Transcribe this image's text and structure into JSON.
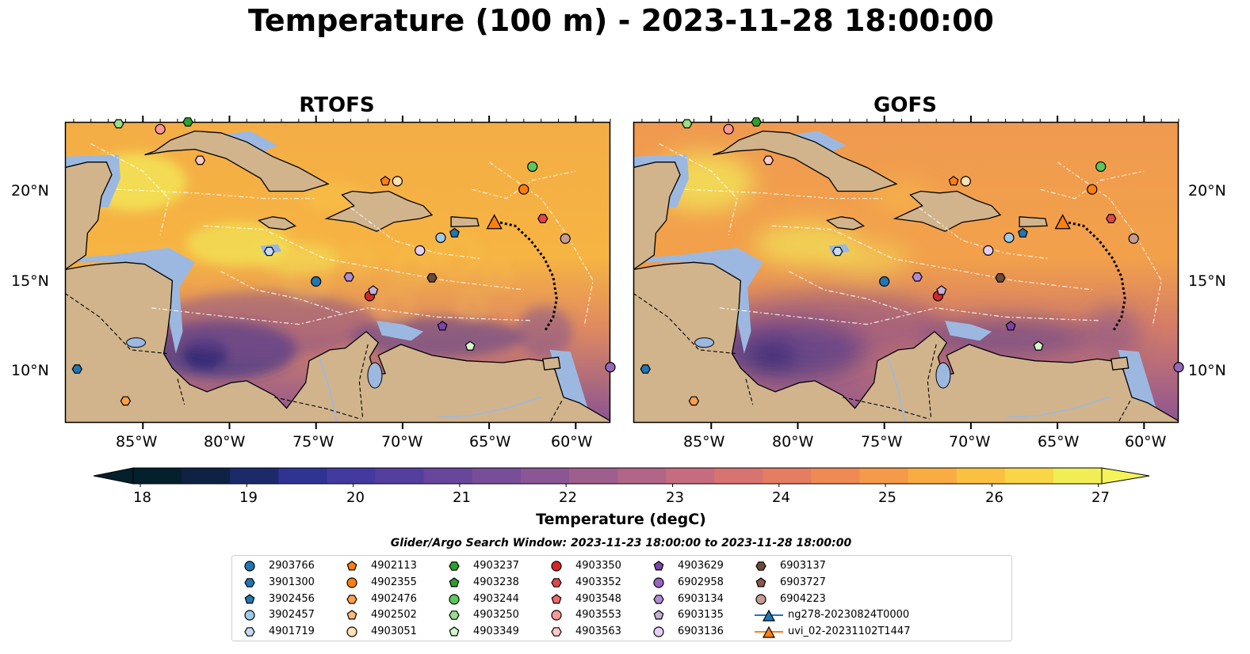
{
  "title": "Temperature (100 m) - 2023-11-28 18:00:00",
  "panels": [
    {
      "title": "RTOFS"
    },
    {
      "title": "GOFS"
    }
  ],
  "axes": {
    "lon_ticks": [
      "85°W",
      "80°W",
      "75°W",
      "70°W",
      "65°W",
      "60°W"
    ],
    "lat_ticks": [
      "20°N",
      "15°N",
      "10°N"
    ]
  },
  "map_extent": {
    "lon": [
      -89.5,
      -58.0
    ],
    "lat": [
      7.2,
      23.7
    ]
  },
  "colorbar": {
    "label": "Temperature (degC)",
    "ticks": [
      "18",
      "19",
      "20",
      "21",
      "22",
      "23",
      "24",
      "25",
      "26",
      "27"
    ],
    "range": [
      18,
      27
    ],
    "extend": "both",
    "colors": [
      "#04202c",
      "#0f2244",
      "#1c2a6a",
      "#2f3392",
      "#433aa0",
      "#553f9e",
      "#67469c",
      "#794e98",
      "#8b5694",
      "#9e5e8e",
      "#b16587",
      "#c56c7e",
      "#d77472",
      "#e57d63",
      "#ef8a54",
      "#f49a48",
      "#f8ac42",
      "#fac041",
      "#f8d645",
      "#f1ee55"
    ]
  },
  "search_window": "Glider/Argo Search Window: 2023-11-23 18:00:00 to 2023-11-28 18:00:00",
  "legend": [
    {
      "label": "2903766",
      "marker": "circle",
      "color": "#1f77b4"
    },
    {
      "label": "3901300",
      "marker": "hexagon",
      "color": "#1f77b4"
    },
    {
      "label": "3902456",
      "marker": "pentagon",
      "color": "#1f77b4"
    },
    {
      "label": "3902457",
      "marker": "circle",
      "color": "#9ecae9"
    },
    {
      "label": "4901719",
      "marker": "hexagon",
      "color": "#c6dbef"
    },
    {
      "label": "4902113",
      "marker": "pentagon",
      "color": "#ff7f0e"
    },
    {
      "label": "4902355",
      "marker": "circle",
      "color": "#ff7f0e"
    },
    {
      "label": "4902476",
      "marker": "hexagon",
      "color": "#ff9e4a"
    },
    {
      "label": "4902502",
      "marker": "pentagon",
      "color": "#ffbb78"
    },
    {
      "label": "4903051",
      "marker": "circle",
      "color": "#ffdfb3"
    },
    {
      "label": "4903237",
      "marker": "hexagon",
      "color": "#2ca02c"
    },
    {
      "label": "4903238",
      "marker": "pentagon",
      "color": "#2ca02c"
    },
    {
      "label": "4903244",
      "marker": "circle",
      "color": "#5cc85c"
    },
    {
      "label": "4903250",
      "marker": "hexagon",
      "color": "#98df8a"
    },
    {
      "label": "4903349",
      "marker": "pentagon",
      "color": "#d4f7cc"
    },
    {
      "label": "4903350",
      "marker": "circle",
      "color": "#d62728"
    },
    {
      "label": "4903352",
      "marker": "hexagon",
      "color": "#e0474a"
    },
    {
      "label": "4903548",
      "marker": "pentagon",
      "color": "#f0696a"
    },
    {
      "label": "4903553",
      "marker": "circle",
      "color": "#ff9896"
    },
    {
      "label": "4903563",
      "marker": "hexagon",
      "color": "#ffc9c7"
    },
    {
      "label": "4903629",
      "marker": "pentagon",
      "color": "#7b45a8"
    },
    {
      "label": "6902958",
      "marker": "circle",
      "color": "#9467bd"
    },
    {
      "label": "6903134",
      "marker": "hexagon",
      "color": "#b08ad6"
    },
    {
      "label": "6903135",
      "marker": "pentagon",
      "color": "#c5b0d5"
    },
    {
      "label": "6903136",
      "marker": "circle",
      "color": "#e6cff5"
    },
    {
      "label": "6903137",
      "marker": "hexagon",
      "color": "#6b4a3a"
    },
    {
      "label": "6903727",
      "marker": "pentagon",
      "color": "#8c564b"
    },
    {
      "label": "6904223",
      "marker": "circle",
      "color": "#c49c94"
    },
    {
      "label": "ng278-20230824T0000",
      "marker": "triangle-line",
      "color": "#1f77b4"
    },
    {
      "label": "uvi_02-20231102T1447",
      "marker": "triangle-line",
      "color": "#ff7f0e"
    }
  ],
  "observations": [
    {
      "id": "2903766",
      "lon": -75.0,
      "lat": 14.95
    },
    {
      "id": "3901300",
      "lon": -88.8,
      "lat": 10.15
    },
    {
      "id": "3902456",
      "lon": -67.0,
      "lat": 17.6
    },
    {
      "id": "3902457",
      "lon": -67.8,
      "lat": 17.35
    },
    {
      "id": "4901719",
      "lon": -77.7,
      "lat": 16.6
    },
    {
      "id": "4902113",
      "lon": -71.0,
      "lat": 20.45
    },
    {
      "id": "4902476",
      "lon": -86.0,
      "lat": 8.4
    },
    {
      "id": "4903051",
      "lon": -70.3,
      "lat": 20.45
    },
    {
      "id": "4903237",
      "lon": -82.4,
      "lat": 23.7
    },
    {
      "id": "4903244",
      "lon": -62.5,
      "lat": 21.25
    },
    {
      "id": "4903250",
      "lon": -86.4,
      "lat": 23.6
    },
    {
      "id": "4903349",
      "lon": -66.1,
      "lat": 11.4
    },
    {
      "id": "4903350",
      "lon": -71.9,
      "lat": 14.15
    },
    {
      "id": "4903352",
      "lon": -61.9,
      "lat": 18.4
    },
    {
      "id": "4903553",
      "lon": -84.0,
      "lat": 23.3
    },
    {
      "id": "4903563",
      "lon": -81.7,
      "lat": 21.6
    },
    {
      "id": "4903629",
      "lon": -67.7,
      "lat": 12.5
    },
    {
      "id": "6902958",
      "lon": -58.0,
      "lat": 10.25
    },
    {
      "id": "6903134",
      "lon": -73.1,
      "lat": 15.2
    },
    {
      "id": "6903135",
      "lon": -71.7,
      "lat": 14.45
    },
    {
      "id": "6903136",
      "lon": -69.0,
      "lat": 16.65
    },
    {
      "id": "6903137",
      "lon": -68.3,
      "lat": 15.15
    },
    {
      "id": "6904223",
      "lon": -60.6,
      "lat": 17.3
    },
    {
      "id": "4902355",
      "lon": -63.0,
      "lat": 20.0
    },
    {
      "id": "ng278-20230824T0000",
      "lon": -64.7,
      "lat": 18.2
    },
    {
      "id": "uvi_02-20231102T1447",
      "lon": -64.7,
      "lat": 18.2
    }
  ]
}
